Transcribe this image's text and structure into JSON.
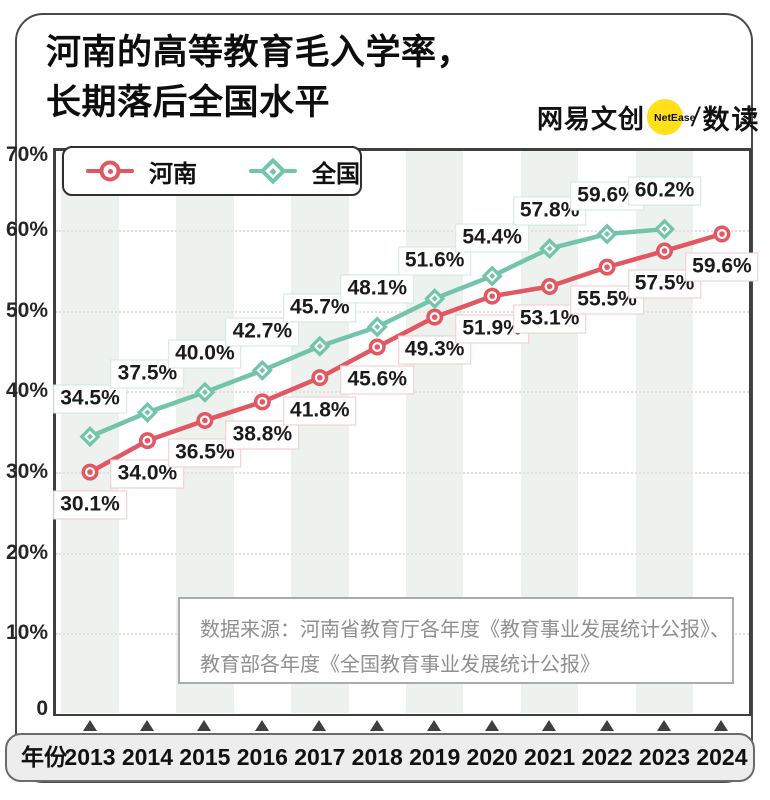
{
  "header": {
    "title_line1": "河南的高等教育毛入学率，",
    "title_line2": "长期落后全国水平"
  },
  "brand": {
    "wordmark": "网易文创",
    "badge": "NetEase",
    "separator": "/",
    "product": "数读",
    "badge_color": "#FFE01A"
  },
  "chart_data": {
    "type": "line",
    "x_label": "年份",
    "x": [
      2013,
      2014,
      2015,
      2016,
      2017,
      2018,
      2019,
      2020,
      2021,
      2022,
      2023,
      2024
    ],
    "series": [
      {
        "name": "河南",
        "marker": "circle",
        "color": "#E15862",
        "label_border": "#F2C9CD",
        "values": [
          30.1,
          34.0,
          36.5,
          38.8,
          41.8,
          45.6,
          49.3,
          51.9,
          53.1,
          55.5,
          57.5,
          59.6
        ]
      },
      {
        "name": "全国",
        "marker": "diamond",
        "color": "#72C5AA",
        "label_border": "#CFE7DD",
        "values": [
          34.5,
          37.5,
          40.0,
          42.7,
          45.7,
          48.1,
          51.6,
          54.4,
          57.8,
          59.6,
          60.2,
          null
        ]
      }
    ],
    "ylim": [
      0,
      70
    ],
    "y_ticks": [
      {
        "label": "70%",
        "value": 70
      },
      {
        "label": "60%",
        "value": 60
      },
      {
        "label": "50%",
        "value": 50
      },
      {
        "label": "40%",
        "value": 40
      },
      {
        "label": "30%",
        "value": 30
      },
      {
        "label": "20%",
        "value": 20
      },
      {
        "label": "10%",
        "value": 10
      },
      {
        "label": "0",
        "value": 0
      }
    ],
    "grid": "horizontal-dotted",
    "legend_position": "top-left",
    "stripe_color": "#EDF2EF",
    "label_format": "percent-1-decimal"
  },
  "source": {
    "line1": "数据来源：河南省教育厅各年度《教育事业发展统计公报》、",
    "line2": "教育部各年度《全国教育事业发展统计公报》"
  }
}
